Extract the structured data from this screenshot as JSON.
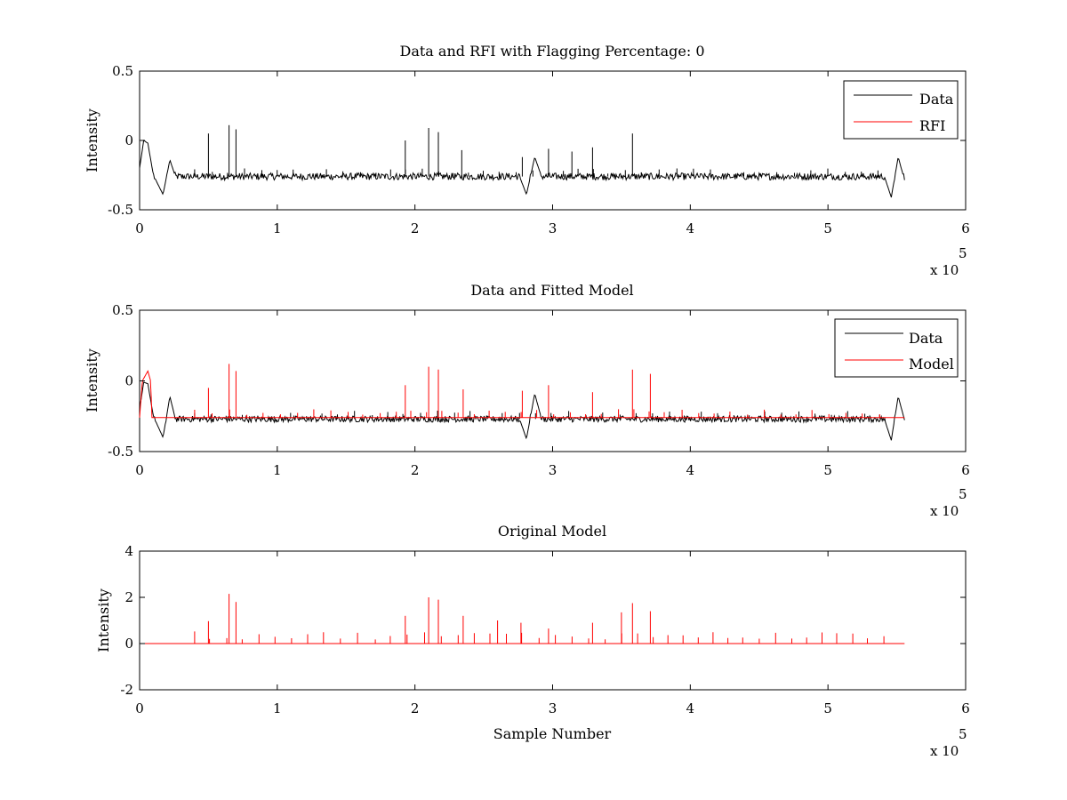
{
  "figure": {
    "background": "#ffffff",
    "data_color": "#000000",
    "model_color": "#ff0000"
  },
  "chart_data": [
    {
      "type": "line",
      "title": "Data and RFI with Flagging Percentage: 0",
      "xlabel": "",
      "ylabel": "Intensity",
      "xlim": [
        0,
        600000
      ],
      "ylim": [
        -0.5,
        0.5
      ],
      "xticks": [
        0,
        1,
        2,
        3,
        4,
        5,
        6
      ],
      "yticks": [
        -0.5,
        0,
        0.5
      ],
      "xtick_labels": [
        "0",
        "1",
        "2",
        "3",
        "4",
        "5",
        "6"
      ],
      "ytick_labels": [
        "-0.5",
        "0",
        "0.5"
      ],
      "x_exponent": {
        "base": "x 10",
        "power": "5"
      },
      "legend": {
        "position": "top-right",
        "entries": [
          "Data",
          "RFI"
        ]
      },
      "series": [
        {
          "name": "Data",
          "color": "#000000",
          "baseline": -0.26,
          "noise": 0.025,
          "points": [
            [
              0,
              -0.2
            ],
            [
              3000,
              0.0
            ],
            [
              6000,
              -0.02
            ],
            [
              10000,
              -0.25
            ],
            [
              17000,
              -0.39
            ],
            [
              22000,
              -0.14
            ],
            [
              26000,
              -0.26
            ],
            [
              276000,
              -0.26
            ],
            [
              281000,
              -0.39
            ],
            [
              287000,
              -0.12
            ],
            [
              292000,
              -0.26
            ],
            [
              541000,
              -0.26
            ],
            [
              546000,
              -0.41
            ],
            [
              551000,
              -0.12
            ],
            [
              556000,
              -0.3
            ]
          ],
          "spikes": [
            [
              50000,
              0.05
            ],
            [
              65000,
              0.11
            ],
            [
              70000,
              0.08
            ],
            [
              193000,
              0.0
            ],
            [
              210000,
              0.09
            ],
            [
              217000,
              0.06
            ],
            [
              358000,
              0.05
            ],
            [
              297000,
              -0.06
            ],
            [
              329000,
              -0.05
            ],
            [
              314000,
              -0.08
            ],
            [
              234000,
              -0.07
            ],
            [
              278000,
              -0.12
            ]
          ]
        },
        {
          "name": "RFI",
          "color": "#ff0000",
          "points": []
        }
      ]
    },
    {
      "type": "line",
      "title": "Data and Fitted Model",
      "xlabel": "",
      "ylabel": "Intensity",
      "xlim": [
        0,
        600000
      ],
      "ylim": [
        -0.5,
        0.5
      ],
      "xticks": [
        0,
        1,
        2,
        3,
        4,
        5,
        6
      ],
      "yticks": [
        -0.5,
        0,
        0.5
      ],
      "xtick_labels": [
        "0",
        "1",
        "2",
        "3",
        "4",
        "5",
        "6"
      ],
      "ytick_labels": [
        "-0.5",
        "0",
        "0.5"
      ],
      "x_exponent": {
        "base": "x 10",
        "power": "5"
      },
      "legend": {
        "position": "top-right",
        "entries": [
          "Data",
          "Model"
        ]
      },
      "series": [
        {
          "name": "Data",
          "color": "#000000",
          "baseline": -0.27,
          "noise": 0.022,
          "points": [
            [
              0,
              -0.2
            ],
            [
              3000,
              -0.01
            ],
            [
              6000,
              -0.02
            ],
            [
              10000,
              -0.25
            ],
            [
              17000,
              -0.4
            ],
            [
              22000,
              -0.11
            ],
            [
              26000,
              -0.27
            ],
            [
              276000,
              -0.27
            ],
            [
              281000,
              -0.41
            ],
            [
              287000,
              -0.09
            ],
            [
              292000,
              -0.27
            ],
            [
              541000,
              -0.27
            ],
            [
              546000,
              -0.42
            ],
            [
              551000,
              -0.11
            ],
            [
              556000,
              -0.29
            ]
          ]
        },
        {
          "name": "Model",
          "color": "#ff0000",
          "baseline": -0.26,
          "points": [
            [
              0,
              -0.26
            ],
            [
              2000,
              0.0
            ],
            [
              6000,
              0.07
            ],
            [
              8000,
              0.0
            ],
            [
              9000,
              -0.26
            ],
            [
              556000,
              -0.26
            ]
          ],
          "spikes": [
            [
              50000,
              -0.05
            ],
            [
              65000,
              0.12
            ],
            [
              70000,
              0.07
            ],
            [
              193000,
              -0.03
            ],
            [
              210000,
              0.1
            ],
            [
              217000,
              0.08
            ],
            [
              358000,
              0.08
            ],
            [
              297000,
              -0.03
            ],
            [
              329000,
              -0.08
            ],
            [
              235000,
              -0.06
            ],
            [
              278000,
              -0.07
            ],
            [
              371000,
              0.05
            ]
          ]
        }
      ]
    },
    {
      "type": "line",
      "title": "Original Model",
      "xlabel": "Sample Number",
      "ylabel": "Intensity",
      "xlim": [
        0,
        600000
      ],
      "ylim": [
        -2,
        4
      ],
      "xticks": [
        0,
        1,
        2,
        3,
        4,
        5,
        6
      ],
      "yticks": [
        -2,
        0,
        2,
        4
      ],
      "xtick_labels": [
        "0",
        "1",
        "2",
        "3",
        "4",
        "5",
        "6"
      ],
      "ytick_labels": [
        "-2",
        "0",
        "2",
        "4"
      ],
      "x_exponent": {
        "base": "x 10",
        "power": "5"
      },
      "legend": null,
      "series": [
        {
          "name": "Model",
          "color": "#ff0000",
          "baseline": 0,
          "points": [
            [
              0,
              0
            ],
            [
              556000,
              0
            ]
          ],
          "spikes": [
            [
              50000,
              0.97
            ],
            [
              65000,
              2.15
            ],
            [
              70000,
              1.8
            ],
            [
              193000,
              1.2
            ],
            [
              210000,
              2.0
            ],
            [
              217000,
              1.9
            ],
            [
              358000,
              1.75
            ],
            [
              371000,
              1.4
            ],
            [
              297000,
              0.65
            ],
            [
              329000,
              0.9
            ],
            [
              235000,
              1.2
            ],
            [
              260000,
              1.0
            ],
            [
              277000,
              0.9
            ],
            [
              350000,
              1.35
            ]
          ]
        }
      ]
    }
  ]
}
